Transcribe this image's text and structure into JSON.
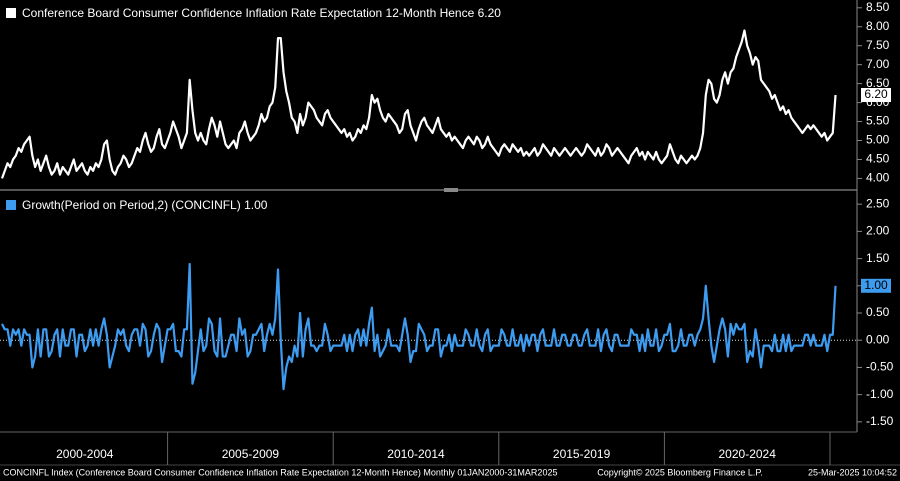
{
  "chart_data": [
    {
      "type": "line",
      "title": "Conference Board Consumer Confidence Inflation Rate Expectation 12-Month Hence 6.20",
      "series": [
        {
          "name": "Conference Board Consumer Confidence Inflation Rate Expectation 12-Month Hence",
          "color": "#ffffff",
          "last_value_label": "6.20",
          "values": [
            4.0,
            4.2,
            4.4,
            4.3,
            4.5,
            4.6,
            4.8,
            4.7,
            4.9,
            5.0,
            5.1,
            4.6,
            4.3,
            4.5,
            4.2,
            4.4,
            4.6,
            4.3,
            4.1,
            4.2,
            4.4,
            4.1,
            4.3,
            4.2,
            4.1,
            4.3,
            4.5,
            4.2,
            4.3,
            4.4,
            4.2,
            4.1,
            4.3,
            4.2,
            4.4,
            4.3,
            4.5,
            4.9,
            5.0,
            4.5,
            4.2,
            4.1,
            4.3,
            4.4,
            4.6,
            4.5,
            4.3,
            4.4,
            4.6,
            4.8,
            4.7,
            5.0,
            5.2,
            4.9,
            4.7,
            4.8,
            5.1,
            5.3,
            4.9,
            4.8,
            5.0,
            5.2,
            5.5,
            5.3,
            5.1,
            4.8,
            5.0,
            5.2,
            6.6,
            5.8,
            5.2,
            5.0,
            5.2,
            5.0,
            4.9,
            5.3,
            5.6,
            5.4,
            5.1,
            5.5,
            5.2,
            4.9,
            4.8,
            4.9,
            5.0,
            4.8,
            5.2,
            5.3,
            5.5,
            5.2,
            5.0,
            5.1,
            5.2,
            5.4,
            5.7,
            5.5,
            5.6,
            5.9,
            6.0,
            6.4,
            7.7,
            7.7,
            6.8,
            6.3,
            6.0,
            5.6,
            5.5,
            5.2,
            5.7,
            5.4,
            5.6,
            6.0,
            5.9,
            5.8,
            5.6,
            5.5,
            5.4,
            5.7,
            5.8,
            5.6,
            5.5,
            5.4,
            5.3,
            5.2,
            5.3,
            5.1,
            5.2,
            5.0,
            5.1,
            5.3,
            5.2,
            5.4,
            5.3,
            5.6,
            6.2,
            6.0,
            6.1,
            5.8,
            5.6,
            5.5,
            5.7,
            5.6,
            5.5,
            5.4,
            5.2,
            5.3,
            5.7,
            5.8,
            5.4,
            5.2,
            5.0,
            5.3,
            5.5,
            5.6,
            5.4,
            5.3,
            5.2,
            5.4,
            5.6,
            5.3,
            5.2,
            5.1,
            5.2,
            5.0,
            5.1,
            5.0,
            4.9,
            4.8,
            5.0,
            5.1,
            5.0,
            4.9,
            5.1,
            5.0,
            4.8,
            4.9,
            5.1,
            4.9,
            4.8,
            4.7,
            4.6,
            4.8,
            4.9,
            4.8,
            4.7,
            4.9,
            4.8,
            4.7,
            4.8,
            4.6,
            4.7,
            4.6,
            4.7,
            4.8,
            4.6,
            4.7,
            4.9,
            4.8,
            4.7,
            4.6,
            4.8,
            4.7,
            4.6,
            4.7,
            4.8,
            4.7,
            4.6,
            4.7,
            4.8,
            4.7,
            4.6,
            4.7,
            4.9,
            4.8,
            4.7,
            4.6,
            4.8,
            4.6,
            4.7,
            4.9,
            4.8,
            4.6,
            4.7,
            4.8,
            4.7,
            4.6,
            4.5,
            4.4,
            4.6,
            4.7,
            4.8,
            4.6,
            4.7,
            4.5,
            4.7,
            4.6,
            4.5,
            4.7,
            4.5,
            4.4,
            4.5,
            4.6,
            4.9,
            4.7,
            4.5,
            4.4,
            4.6,
            4.5,
            4.4,
            4.5,
            4.6,
            4.5,
            4.6,
            4.8,
            5.2,
            6.2,
            6.6,
            6.5,
            6.1,
            6.0,
            6.2,
            6.6,
            6.8,
            6.5,
            6.8,
            6.9,
            7.2,
            7.4,
            7.6,
            7.9,
            7.5,
            7.3,
            7.0,
            7.2,
            7.1,
            6.6,
            6.5,
            6.4,
            6.3,
            6.1,
            6.2,
            6.0,
            5.8,
            5.9,
            5.7,
            5.8,
            5.6,
            5.5,
            5.4,
            5.3,
            5.2,
            5.3,
            5.4,
            5.3,
            5.4,
            5.3,
            5.2,
            5.1,
            5.2,
            5.0,
            5.1,
            5.2,
            6.2
          ]
        }
      ],
      "ylim": [
        3.8,
        8.6
      ],
      "yticks": [
        {
          "value": 4,
          "label": "4.00"
        },
        {
          "value": 4.5,
          "label": "4.50"
        },
        {
          "value": 5,
          "label": "5.00"
        },
        {
          "value": 5.5,
          "label": "5.50"
        },
        {
          "value": 6,
          "label": "6.00"
        },
        {
          "value": 6.5,
          "label": "6.50"
        },
        {
          "value": 7,
          "label": "7.00"
        },
        {
          "value": 7.5,
          "label": "7.50"
        },
        {
          "value": 8,
          "label": "8.00"
        },
        {
          "value": 8.5,
          "label": "8.50"
        }
      ]
    },
    {
      "type": "line",
      "title": "Growth(Period on Period,2) (CONCINFL) 1.00",
      "series": [
        {
          "name": "Growth(Period on Period,2) (CONCINFL)",
          "color": "#3d9bf0",
          "last_value_label": "1.00",
          "values": [
            0.3,
            0.2,
            0.2,
            -0.1,
            0.2,
            0.1,
            0.2,
            -0.1,
            0.2,
            0.1,
            0.1,
            -0.5,
            -0.3,
            0.2,
            -0.3,
            0.2,
            0.2,
            -0.3,
            -0.2,
            0.1,
            0.2,
            -0.3,
            0.2,
            -0.1,
            -0.1,
            0.2,
            0.2,
            -0.3,
            0.1,
            0.1,
            -0.2,
            -0.1,
            0.2,
            -0.1,
            0.2,
            -0.1,
            0.2,
            0.4,
            0.1,
            -0.5,
            -0.3,
            -0.1,
            0.2,
            0.1,
            0.2,
            -0.1,
            -0.2,
            0.1,
            0.2,
            0.2,
            -0.1,
            0.3,
            0.2,
            -0.3,
            -0.2,
            0.1,
            0.3,
            0.2,
            -0.4,
            -0.1,
            0.2,
            0.2,
            0.3,
            -0.2,
            -0.2,
            -0.3,
            0.2,
            0.2,
            1.4,
            -0.8,
            -0.6,
            -0.2,
            0.2,
            -0.2,
            -0.1,
            0.4,
            0.3,
            -0.2,
            -0.3,
            0.4,
            -0.3,
            -0.3,
            -0.1,
            0.1,
            0.1,
            -0.2,
            0.4,
            0.1,
            0.2,
            -0.3,
            -0.2,
            0.1,
            0.1,
            0.2,
            0.3,
            -0.2,
            0.1,
            0.3,
            0.1,
            0.4,
            1.3,
            0.0,
            -0.9,
            -0.5,
            -0.3,
            -0.4,
            -0.1,
            -0.3,
            0.5,
            -0.3,
            0.2,
            0.4,
            -0.1,
            -0.1,
            -0.2,
            -0.1,
            -0.1,
            0.3,
            0.1,
            -0.2,
            -0.1,
            -0.1,
            -0.1,
            -0.1,
            0.1,
            -0.2,
            0.1,
            -0.2,
            0.1,
            0.2,
            -0.1,
            0.2,
            -0.1,
            0.3,
            0.6,
            -0.2,
            0.1,
            -0.3,
            -0.2,
            -0.1,
            0.2,
            -0.1,
            -0.1,
            -0.1,
            -0.2,
            0.1,
            0.4,
            0.1,
            -0.4,
            -0.2,
            -0.2,
            0.3,
            0.2,
            0.1,
            -0.2,
            -0.1,
            -0.1,
            0.2,
            0.2,
            -0.3,
            -0.1,
            -0.1,
            0.1,
            -0.2,
            0.1,
            -0.1,
            -0.1,
            -0.1,
            0.2,
            0.1,
            -0.1,
            -0.1,
            0.2,
            -0.1,
            -0.2,
            0.1,
            0.2,
            -0.2,
            -0.1,
            -0.1,
            -0.1,
            0.2,
            0.1,
            -0.1,
            -0.1,
            0.2,
            -0.1,
            -0.1,
            0.1,
            -0.2,
            0.1,
            -0.1,
            0.1,
            0.1,
            -0.2,
            0.1,
            0.2,
            -0.1,
            -0.1,
            -0.1,
            0.2,
            -0.1,
            -0.1,
            0.1,
            0.1,
            -0.1,
            -0.1,
            0.1,
            0.1,
            -0.1,
            -0.1,
            0.1,
            0.2,
            -0.1,
            -0.1,
            -0.1,
            0.2,
            -0.2,
            0.1,
            0.2,
            -0.1,
            -0.2,
            0.1,
            0.1,
            -0.1,
            -0.1,
            -0.1,
            -0.1,
            0.2,
            0.1,
            0.1,
            -0.2,
            0.1,
            -0.2,
            0.2,
            -0.1,
            -0.1,
            0.2,
            -0.2,
            -0.1,
            0.1,
            0.1,
            0.3,
            -0.2,
            -0.2,
            -0.1,
            0.2,
            -0.1,
            -0.1,
            0.1,
            0.1,
            -0.1,
            0.1,
            0.2,
            0.4,
            1.0,
            0.4,
            -0.1,
            -0.4,
            -0.1,
            0.2,
            0.4,
            0.2,
            -0.3,
            0.3,
            0.1,
            0.3,
            0.2,
            0.2,
            0.3,
            -0.4,
            -0.2,
            -0.3,
            0.2,
            -0.1,
            -0.5,
            -0.1,
            -0.1,
            -0.1,
            -0.2,
            0.1,
            -0.2,
            -0.2,
            0.1,
            -0.2,
            0.1,
            -0.2,
            -0.1,
            -0.1,
            -0.1,
            -0.1,
            0.1,
            0.1,
            -0.1,
            0.1,
            -0.1,
            -0.1,
            -0.1,
            0.1,
            -0.2,
            0.1,
            0.1,
            1.0
          ]
        }
      ],
      "ylim": [
        -1.65,
        2.65
      ],
      "yticks": [
        {
          "value": -1.5,
          "label": "-1.50"
        },
        {
          "value": -1,
          "label": "-1.00"
        },
        {
          "value": -0.5,
          "label": "-0.50"
        },
        {
          "value": 0,
          "label": "0.00"
        },
        {
          "value": 0.5,
          "label": "0.50"
        },
        {
          "value": 1,
          "label": "1.00"
        },
        {
          "value": 1.5,
          "label": "1.50"
        },
        {
          "value": 2,
          "label": "2.00"
        },
        {
          "value": 2.5,
          "label": "2.50"
        }
      ]
    }
  ],
  "x_axis": {
    "labels": [
      "2000-2004",
      "2005-2009",
      "2010-2014",
      "2015-2019",
      "2020-2024"
    ]
  },
  "footer": {
    "left": "CONCINFL Index (Conference Board Consumer Confidence Inflation Rate Expectation 12-Month Hence)  Monthly 01JAN2000-31MAR2025",
    "center": "Copyright© 2025 Bloomberg Finance L.P.",
    "right": "25-Mar-2025 10:04:52"
  }
}
